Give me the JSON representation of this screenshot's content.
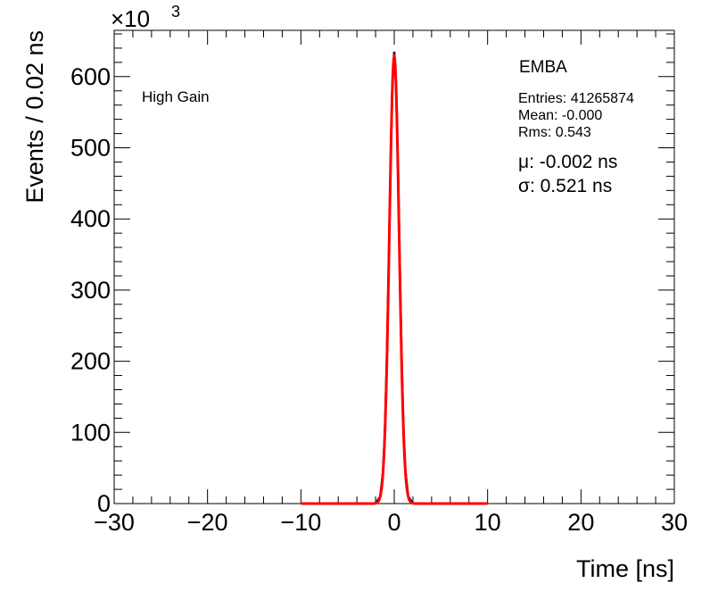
{
  "chart_data": {
    "type": "line",
    "title": "",
    "xlabel": "Time [ns]",
    "ylabel": "Events / 0.02 ns",
    "xlim": [
      -30,
      30
    ],
    "ylim": [
      0,
      665
    ],
    "y_multiplier": "×10",
    "y_multiplier_exp": "3",
    "x_ticks": [
      -30,
      -20,
      -10,
      0,
      10,
      20,
      30
    ],
    "x_tick_labels": [
      "−30",
      "−20",
      "−10",
      "0",
      "10",
      "20",
      "30"
    ],
    "y_ticks": [
      0,
      100,
      200,
      300,
      400,
      500,
      600
    ],
    "y_tick_labels": [
      "0",
      "100",
      "200",
      "300",
      "400",
      "500",
      "600"
    ],
    "grid": false,
    "annotations": {
      "gain": "High Gain",
      "partition": "EMBA",
      "entries": "Entries: 41265874",
      "mean": "Mean: -0.000",
      "rms": "Rms: 0.543",
      "mu": "μ: -0.002 ns",
      "sigma": "σ: 0.521 ns"
    },
    "series": [
      {
        "kind": "histogram",
        "color": "#000000",
        "peak": 635,
        "mean": 0.0,
        "rms": 0.543,
        "x": [
          -2.0,
          -1.5,
          -1.2,
          -1.0,
          -0.8,
          -0.6,
          -0.4,
          -0.2,
          0.0,
          0.2,
          0.4,
          0.6,
          0.8,
          1.0,
          1.2,
          1.5,
          2.0
        ],
        "y": [
          0,
          10,
          45,
          100,
          200,
          330,
          470,
          590,
          635,
          590,
          470,
          330,
          200,
          100,
          45,
          10,
          0
        ]
      },
      {
        "kind": "gaussian_fit",
        "color": "#ff0000",
        "amplitude": 628,
        "mu": -0.002,
        "sigma": 0.521,
        "range": [
          -10,
          10
        ]
      }
    ]
  }
}
